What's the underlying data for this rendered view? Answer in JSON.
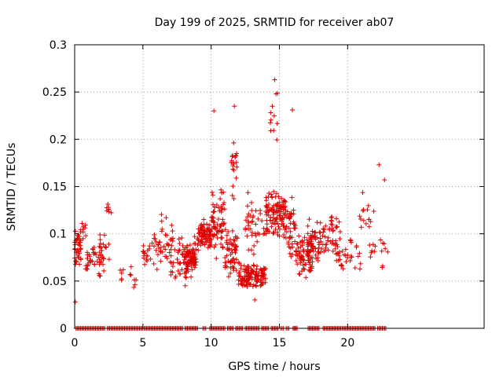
{
  "chart_data": {
    "type": "scatter",
    "title": "Day 199 of 2025, SRMTID for receiver ab07",
    "xlabel": "GPS time / hours",
    "ylabel": "SRMTID / TECUs",
    "xlim": [
      0,
      30
    ],
    "ylim": [
      0,
      0.3
    ],
    "xticks": [
      "0",
      "5",
      "10",
      "15",
      "20"
    ],
    "xtick_values": [
      0,
      5,
      10,
      15,
      20
    ],
    "yticks": [
      "0",
      "0.05",
      "0.1",
      "0.15",
      "0.2",
      "0.25",
      "0.3"
    ],
    "ytick_values": [
      0,
      0.05,
      0.1,
      0.15,
      0.2,
      0.25,
      0.3
    ],
    "grid": true,
    "marker": "plus",
    "color": "#dd0000",
    "series": [
      {
        "name": "SRMTID",
        "clusters": [
          {
            "x_range": [
              0.0,
              0.5
            ],
            "y_center": 0.085,
            "y_spread": 0.02,
            "count": 40
          },
          {
            "x_range": [
              0.5,
              1.0
            ],
            "y_center": 0.105,
            "y_spread": 0.01,
            "count": 8
          },
          {
            "x_range": [
              0.8,
              2.0
            ],
            "y_center": 0.07,
            "y_spread": 0.02,
            "count": 35
          },
          {
            "x_range": [
              1.8,
              2.6
            ],
            "y_center": 0.08,
            "y_spread": 0.025,
            "count": 25
          },
          {
            "x_range": [
              2.3,
              2.7
            ],
            "y_center": 0.125,
            "y_spread": 0.008,
            "count": 8
          },
          {
            "x_range": [
              3.3,
              4.5
            ],
            "y_center": 0.055,
            "y_spread": 0.012,
            "count": 12
          },
          {
            "x_range": [
              5.0,
              6.2
            ],
            "y_center": 0.08,
            "y_spread": 0.02,
            "count": 30
          },
          {
            "x_range": [
              6.2,
              7.2
            ],
            "y_center": 0.09,
            "y_spread": 0.025,
            "count": 30
          },
          {
            "x_range": [
              7.0,
              8.0
            ],
            "y_center": 0.07,
            "y_spread": 0.025,
            "count": 30
          },
          {
            "x_range": [
              8.0,
              9.0
            ],
            "y_center": 0.075,
            "y_spread": 0.02,
            "count": 90
          },
          {
            "x_range": [
              9.0,
              10.0
            ],
            "y_center": 0.1,
            "y_spread": 0.015,
            "count": 80
          },
          {
            "x_range": [
              10.0,
              11.0
            ],
            "y_center": 0.11,
            "y_spread": 0.035,
            "count": 70
          },
          {
            "x_range": [
              11.0,
              12.0
            ],
            "y_center": 0.08,
            "y_spread": 0.025,
            "count": 60
          },
          {
            "x_range": [
              11.4,
              11.9
            ],
            "y_center": 0.17,
            "y_spread": 0.035,
            "count": 20
          },
          {
            "x_range": [
              12.0,
              14.0
            ],
            "y_center": 0.055,
            "y_spread": 0.012,
            "count": 120
          },
          {
            "x_range": [
              12.5,
              14.0
            ],
            "y_center": 0.11,
            "y_spread": 0.03,
            "count": 40
          },
          {
            "x_range": [
              14.0,
              15.5
            ],
            "y_center": 0.12,
            "y_spread": 0.025,
            "count": 120
          },
          {
            "x_range": [
              14.3,
              14.9
            ],
            "y_center": 0.22,
            "y_spread": 0.03,
            "count": 10
          },
          {
            "x_range": [
              15.5,
              16.2
            ],
            "y_center": 0.1,
            "y_spread": 0.03,
            "count": 40
          },
          {
            "x_range": [
              16.2,
              17.5
            ],
            "y_center": 0.075,
            "y_spread": 0.02,
            "count": 70
          },
          {
            "x_range": [
              17.0,
              18.5
            ],
            "y_center": 0.09,
            "y_spread": 0.025,
            "count": 70
          },
          {
            "x_range": [
              18.5,
              19.5
            ],
            "y_center": 0.1,
            "y_spread": 0.025,
            "count": 40
          },
          {
            "x_range": [
              19.5,
              21.0
            ],
            "y_center": 0.075,
            "y_spread": 0.02,
            "count": 25
          },
          {
            "x_range": [
              20.8,
              22.0
            ],
            "y_center": 0.12,
            "y_spread": 0.025,
            "count": 15
          },
          {
            "x_range": [
              21.5,
              23.0
            ],
            "y_center": 0.085,
            "y_spread": 0.025,
            "count": 15
          }
        ],
        "outliers": [
          {
            "x": 0.05,
            "y": 0.028
          },
          {
            "x": 8.1,
            "y": 0.045
          },
          {
            "x": 10.2,
            "y": 0.23
          },
          {
            "x": 11.7,
            "y": 0.235
          },
          {
            "x": 14.65,
            "y": 0.263
          },
          {
            "x": 14.75,
            "y": 0.248
          },
          {
            "x": 15.95,
            "y": 0.231
          },
          {
            "x": 22.3,
            "y": 0.173
          },
          {
            "x": 22.7,
            "y": 0.157
          },
          {
            "x": 13.2,
            "y": 0.03
          }
        ],
        "zero_segments": [
          [
            0.1,
            2.2
          ],
          [
            2.4,
            5.0
          ],
          [
            5.1,
            7.9
          ],
          [
            8.1,
            9.0
          ],
          [
            9.4,
            9.6
          ],
          [
            9.9,
            11.0
          ],
          [
            11.2,
            11.6
          ],
          [
            11.8,
            12.3
          ],
          [
            12.5,
            13.5
          ],
          [
            13.7,
            14.2
          ],
          [
            14.4,
            14.9
          ],
          [
            15.1,
            15.3
          ],
          [
            15.5,
            15.7
          ],
          [
            16.0,
            16.3
          ],
          [
            17.1,
            17.9
          ],
          [
            18.2,
            19.5
          ],
          [
            19.6,
            22.0
          ],
          [
            22.2,
            22.8
          ]
        ]
      }
    ]
  }
}
